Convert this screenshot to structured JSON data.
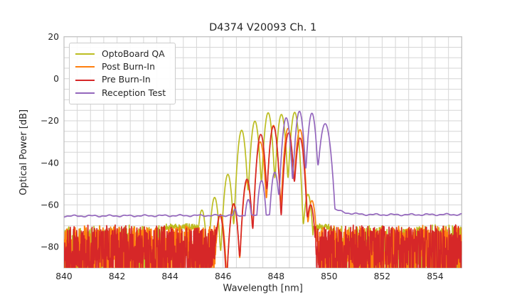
{
  "chart_data": {
    "type": "line",
    "title": "D4374 V20093 Ch. 1",
    "xlabel": "Wavelength [nm]",
    "ylabel": "Optical Power [dB]",
    "xlim": [
      840,
      855
    ],
    "ylim": [
      -90,
      20
    ],
    "x_ticks": [
      840,
      842,
      844,
      846,
      848,
      850,
      852,
      854
    ],
    "y_ticks": [
      20,
      0,
      -20,
      -40,
      -60,
      -80
    ],
    "grid": {
      "visible": true,
      "x_step_nm": 0.5,
      "y_step_db": 5,
      "color": "#d6d6d6",
      "frame_color": "#bdbdbd"
    },
    "legend_position": "upper-left",
    "series": [
      {
        "name": "OptoBoard QA",
        "color": "#bcbd22",
        "modes_nm_db": [
          [
            845.2,
            -62.5
          ],
          [
            845.68,
            -56.5
          ],
          [
            846.18,
            -45.5
          ],
          [
            846.7,
            -24.5
          ],
          [
            847.2,
            -20.2
          ],
          [
            847.7,
            -16.2
          ],
          [
            848.2,
            -17.0
          ],
          [
            848.7,
            -16.0
          ],
          [
            849.2,
            -55
          ]
        ],
        "noise": {
          "top_db": -70.6,
          "spike_depth_db": 27,
          "tight_top_db": -69.4,
          "tight_depth_db": 2.4,
          "spiky_regions": [
            [
              840,
              843.78
            ],
            [
              850.1,
              855
            ]
          ],
          "tight_regions": [
            [
              843.78,
              845.05
            ],
            [
              849.4,
              850.1
            ]
          ],
          "seed": 101
        }
      },
      {
        "name": "Post Burn-In",
        "color": "#ff7f0e",
        "modes_nm_db": [
          [
            845.9,
            -64.5
          ],
          [
            846.4,
            -60.0
          ],
          [
            846.9,
            -48.8
          ],
          [
            847.4,
            -30.0
          ],
          [
            847.9,
            -22.2
          ],
          [
            848.45,
            -23.6
          ],
          [
            848.9,
            -24.2
          ],
          [
            849.35,
            -58
          ]
        ],
        "noise": {
          "top_db": -70.8,
          "spike_depth_db": 27,
          "spiky_regions": [
            [
              840,
              845.82
            ],
            [
              849.5,
              855
            ]
          ],
          "tight_regions": [],
          "seed": 202
        }
      },
      {
        "name": "Pre Burn-In",
        "color": "#d62728",
        "modes_nm_db": [
          [
            845.88,
            -65.0
          ],
          [
            846.4,
            -59.5
          ],
          [
            846.9,
            -47.8
          ],
          [
            847.42,
            -26.5
          ],
          [
            847.9,
            -22.6
          ],
          [
            848.47,
            -25.8
          ],
          [
            848.9,
            -28.2
          ],
          [
            849.3,
            -60
          ]
        ],
        "noise": {
          "top_db": -70.6,
          "spike_depth_db": 27,
          "spiky_regions": [
            [
              840,
              845.8
            ],
            [
              849.45,
              855
            ]
          ],
          "tight_regions": [],
          "seed": 303
        }
      },
      {
        "name": "Reception Test",
        "color": "#9467bd",
        "modes_nm_db": [
          [
            846.45,
            -62.0
          ],
          [
            846.95,
            -57.5
          ],
          [
            847.45,
            -48.5
          ],
          [
            847.95,
            -44.5
          ],
          [
            848.38,
            -18.6
          ],
          [
            848.88,
            -15.5
          ],
          [
            849.35,
            -16.4
          ],
          [
            849.85,
            -21.4,
            0.12
          ]
        ],
        "baseline": {
          "start_db": -65.35,
          "end_db": -64.6,
          "wiggle_db": 0.3,
          "right_shoulder_db": 4.5,
          "right_shoulder_start_nm": 850.0,
          "right_shoulder_decay_nm": 0.45
        }
      }
    ]
  }
}
